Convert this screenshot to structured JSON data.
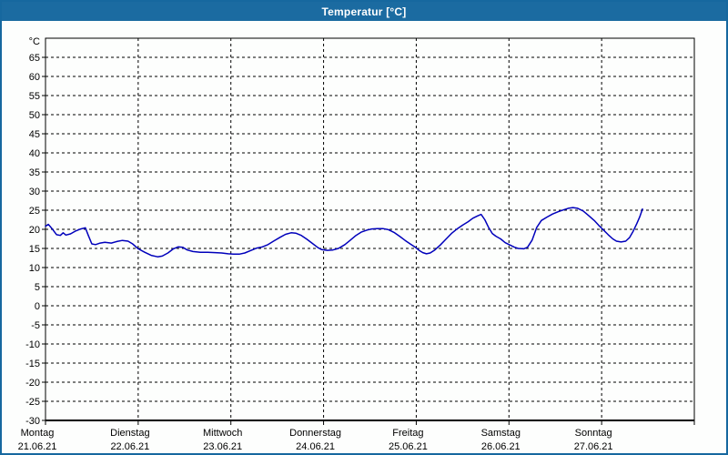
{
  "window": {
    "title": "Temperatur [°C]",
    "titlebar_color": "#1b6ba1",
    "border_color": "#16689f",
    "background_color": "#fdfefd"
  },
  "chart_data": {
    "type": "line",
    "title": "Temperatur [°C]",
    "unit_label": "°C",
    "grid": "dashed",
    "grid_color": "#000000",
    "axis_color": "#000000",
    "y_axis": {
      "min": -30,
      "max": 70,
      "tick_step": 5,
      "tick_labels": [
        65,
        60,
        55,
        50,
        45,
        40,
        35,
        30,
        25,
        20,
        15,
        10,
        5,
        0,
        -5,
        -10,
        -15,
        -20,
        -25,
        -30
      ]
    },
    "x_axis": {
      "days": [
        {
          "label": "Montag",
          "date": "21.06.21"
        },
        {
          "label": "Dienstag",
          "date": "22.06.21"
        },
        {
          "label": "Mittwoch",
          "date": "23.06.21"
        },
        {
          "label": "Donnerstag",
          "date": "24.06.21"
        },
        {
          "label": "Freitag",
          "date": "25.06.21"
        },
        {
          "label": "Samstag",
          "date": "26.06.21"
        },
        {
          "label": "Sonntag",
          "date": "27.06.21"
        }
      ]
    },
    "series": [
      {
        "name": "Temperatur",
        "color": "#0000bb",
        "points": [
          [
            0.0,
            20.8
          ],
          [
            0.03,
            21.3
          ],
          [
            0.07,
            20.2
          ],
          [
            0.12,
            18.6
          ],
          [
            0.16,
            18.4
          ],
          [
            0.19,
            19.1
          ],
          [
            0.22,
            18.5
          ],
          [
            0.27,
            18.8
          ],
          [
            0.32,
            19.5
          ],
          [
            0.38,
            20.1
          ],
          [
            0.43,
            20.4
          ],
          [
            0.46,
            18.5
          ],
          [
            0.5,
            16.2
          ],
          [
            0.54,
            16.0
          ],
          [
            0.59,
            16.4
          ],
          [
            0.64,
            16.6
          ],
          [
            0.71,
            16.4
          ],
          [
            0.77,
            16.8
          ],
          [
            0.83,
            17.1
          ],
          [
            0.89,
            16.9
          ],
          [
            0.94,
            16.2
          ],
          [
            1.0,
            14.9
          ],
          [
            1.07,
            14.0
          ],
          [
            1.14,
            13.2
          ],
          [
            1.21,
            12.8
          ],
          [
            1.26,
            13.0
          ],
          [
            1.32,
            13.8
          ],
          [
            1.38,
            14.9
          ],
          [
            1.43,
            15.4
          ],
          [
            1.48,
            15.3
          ],
          [
            1.53,
            14.6
          ],
          [
            1.59,
            14.2
          ],
          [
            1.67,
            14.0
          ],
          [
            1.75,
            14.0
          ],
          [
            1.83,
            13.9
          ],
          [
            1.9,
            13.8
          ],
          [
            1.97,
            13.6
          ],
          [
            2.03,
            13.5
          ],
          [
            2.09,
            13.5
          ],
          [
            2.15,
            13.8
          ],
          [
            2.22,
            14.5
          ],
          [
            2.28,
            15.1
          ],
          [
            2.34,
            15.4
          ],
          [
            2.4,
            16.0
          ],
          [
            2.46,
            16.9
          ],
          [
            2.53,
            17.9
          ],
          [
            2.59,
            18.7
          ],
          [
            2.65,
            19.1
          ],
          [
            2.7,
            19.0
          ],
          [
            2.76,
            18.4
          ],
          [
            2.82,
            17.4
          ],
          [
            2.88,
            16.3
          ],
          [
            2.94,
            15.2
          ],
          [
            2.98,
            14.7
          ],
          [
            3.04,
            14.5
          ],
          [
            3.1,
            14.6
          ],
          [
            3.16,
            15.0
          ],
          [
            3.23,
            16.0
          ],
          [
            3.29,
            17.2
          ],
          [
            3.35,
            18.4
          ],
          [
            3.41,
            19.3
          ],
          [
            3.47,
            19.8
          ],
          [
            3.52,
            20.1
          ],
          [
            3.58,
            20.2
          ],
          [
            3.64,
            20.2
          ],
          [
            3.7,
            19.9
          ],
          [
            3.76,
            19.2
          ],
          [
            3.82,
            18.2
          ],
          [
            3.88,
            17.1
          ],
          [
            3.94,
            16.1
          ],
          [
            3.99,
            15.3
          ],
          [
            4.03,
            14.5
          ],
          [
            4.07,
            13.9
          ],
          [
            4.11,
            13.6
          ],
          [
            4.15,
            13.8
          ],
          [
            4.2,
            14.6
          ],
          [
            4.26,
            15.9
          ],
          [
            4.32,
            17.4
          ],
          [
            4.38,
            18.9
          ],
          [
            4.44,
            20.1
          ],
          [
            4.5,
            21.1
          ],
          [
            4.56,
            22.0
          ],
          [
            4.61,
            22.9
          ],
          [
            4.66,
            23.5
          ],
          [
            4.7,
            23.9
          ],
          [
            4.74,
            22.5
          ],
          [
            4.78,
            20.5
          ],
          [
            4.82,
            18.9
          ],
          [
            4.86,
            18.2
          ],
          [
            4.91,
            17.5
          ],
          [
            4.96,
            16.5
          ],
          [
            5.01,
            15.9
          ],
          [
            5.06,
            15.3
          ],
          [
            5.1,
            15.0
          ],
          [
            5.16,
            14.9
          ],
          [
            5.2,
            15.3
          ],
          [
            5.25,
            17.2
          ],
          [
            5.3,
            20.5
          ],
          [
            5.35,
            22.3
          ],
          [
            5.41,
            23.2
          ],
          [
            5.47,
            24.0
          ],
          [
            5.53,
            24.6
          ],
          [
            5.59,
            25.1
          ],
          [
            5.64,
            25.5
          ],
          [
            5.69,
            25.7
          ],
          [
            5.74,
            25.5
          ],
          [
            5.8,
            24.8
          ],
          [
            5.86,
            23.6
          ],
          [
            5.92,
            22.3
          ],
          [
            5.97,
            21.0
          ],
          [
            6.02,
            19.8
          ],
          [
            6.07,
            18.6
          ],
          [
            6.12,
            17.5
          ],
          [
            6.16,
            16.9
          ],
          [
            6.21,
            16.7
          ],
          [
            6.26,
            16.9
          ],
          [
            6.3,
            17.8
          ],
          [
            6.34,
            19.5
          ],
          [
            6.38,
            21.5
          ],
          [
            6.41,
            23.2
          ],
          [
            6.44,
            25.3
          ]
        ]
      }
    ]
  }
}
